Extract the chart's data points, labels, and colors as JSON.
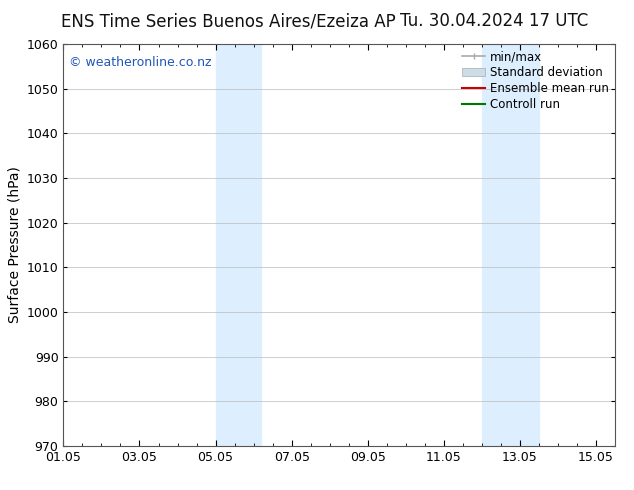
{
  "title_left": "ENS Time Series Buenos Aires/Ezeiza AP",
  "title_right": "Tu. 30.04.2024 17 UTC",
  "ylabel": "Surface Pressure (hPa)",
  "ylim": [
    970,
    1060
  ],
  "yticks": [
    970,
    980,
    990,
    1000,
    1010,
    1020,
    1030,
    1040,
    1050,
    1060
  ],
  "xlim_start": 0,
  "xlim_end": 14.5,
  "xtick_labels": [
    "01.05",
    "03.05",
    "05.05",
    "07.05",
    "09.05",
    "11.05",
    "13.05",
    "15.05"
  ],
  "xtick_positions": [
    0,
    2,
    4,
    6,
    8,
    10,
    12,
    14
  ],
  "shaded_bands": [
    {
      "x_start": 4.0,
      "x_end": 5.2
    },
    {
      "x_start": 11.0,
      "x_end": 12.5
    }
  ],
  "shaded_color": "#ddeeff",
  "watermark_text": "© weatheronline.co.nz",
  "watermark_color": "#2255bb",
  "watermark_fontsize": 9,
  "background_color": "#ffffff",
  "legend_items": [
    {
      "label": "min/max",
      "color": "#aaaaaa",
      "lw": 1.2,
      "ls": "-",
      "type": "line_with_caps"
    },
    {
      "label": "Standard deviation",
      "color": "#ccdde8",
      "lw": 8,
      "ls": "-",
      "type": "patch"
    },
    {
      "label": "Ensemble mean run",
      "color": "#cc0000",
      "lw": 1.5,
      "ls": "-",
      "type": "line"
    },
    {
      "label": "Controll run",
      "color": "#007700",
      "lw": 1.5,
      "ls": "-",
      "type": "line"
    }
  ],
  "title_fontsize": 12,
  "ylabel_fontsize": 10,
  "tick_fontsize": 9,
  "legend_fontsize": 8.5,
  "grid_color": "#bbbbbb",
  "grid_lw": 0.5,
  "spine_color": "#555555",
  "spine_lw": 0.8
}
